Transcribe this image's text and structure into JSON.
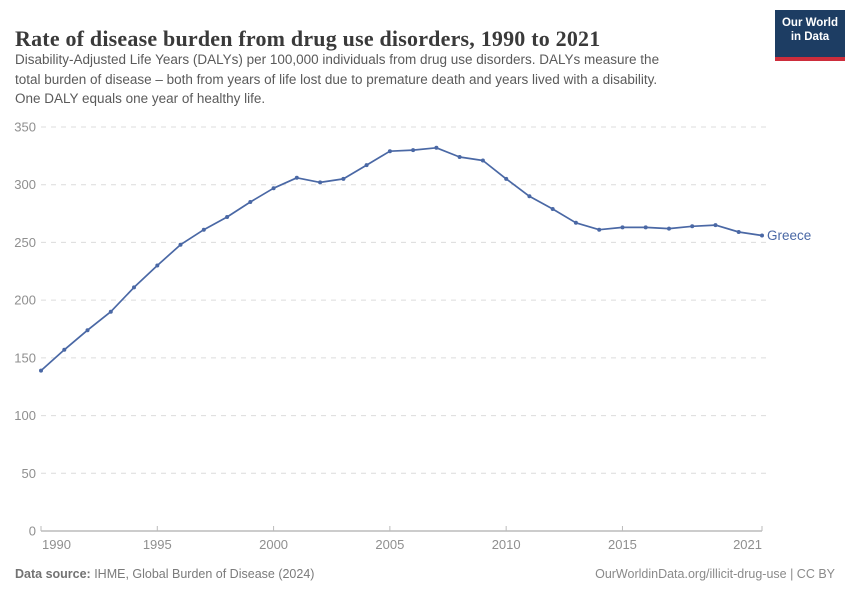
{
  "header": {
    "title": "Rate of disease burden from drug use disorders, 1990 to 2021",
    "subtitle_lines": [
      "Disability-Adjusted Life Years (DALYs) per 100,000 individuals from drug use disorders. DALYs measure the",
      "total burden of disease – both from years of life lost due to premature death and years lived with a disability.",
      "One DALY equals one year of healthy life."
    ],
    "logo": {
      "line1": "Our World",
      "line2": "in Data",
      "bg_color": "#1d3d63",
      "accent_color": "#cd2d3b"
    }
  },
  "chart_data": {
    "type": "line",
    "title": "Rate of disease burden from drug use disorders, 1990 to 2021",
    "xlabel": "",
    "ylabel": "DALYs per 100,000 individuals",
    "x": [
      1990,
      1991,
      1992,
      1993,
      1994,
      1995,
      1996,
      1997,
      1998,
      1999,
      2000,
      2001,
      2002,
      2003,
      2004,
      2005,
      2006,
      2007,
      2008,
      2009,
      2010,
      2011,
      2012,
      2013,
      2014,
      2015,
      2016,
      2017,
      2018,
      2019,
      2020,
      2021
    ],
    "series": [
      {
        "name": "Greece",
        "color": "#4a68a5",
        "values": [
          139,
          157,
          174,
          190,
          211,
          230,
          248,
          261,
          272,
          285,
          297,
          306,
          302,
          305,
          317,
          329,
          330,
          332,
          324,
          321,
          305,
          290,
          279,
          267,
          261,
          263,
          263,
          262,
          264,
          265,
          259,
          256
        ]
      }
    ],
    "xlim": [
      1990,
      2021
    ],
    "ylim": [
      0,
      350
    ],
    "yticks": [
      0,
      50,
      100,
      150,
      200,
      250,
      300,
      350
    ],
    "xticks": [
      1990,
      1995,
      2000,
      2005,
      2010,
      2015,
      2021
    ],
    "grid": "horizontal-dashed",
    "legend_position": "end-of-line-label",
    "axis_label_color": "#8f8f8f",
    "grid_color": "#dcdcdc",
    "axis_color": "#999999"
  },
  "footer": {
    "datasource_label": "Data source:",
    "datasource_value": " IHME, Global Burden of Disease (2024)",
    "attribution": "OurWorldinData.org/illicit-drug-use | CC BY"
  }
}
